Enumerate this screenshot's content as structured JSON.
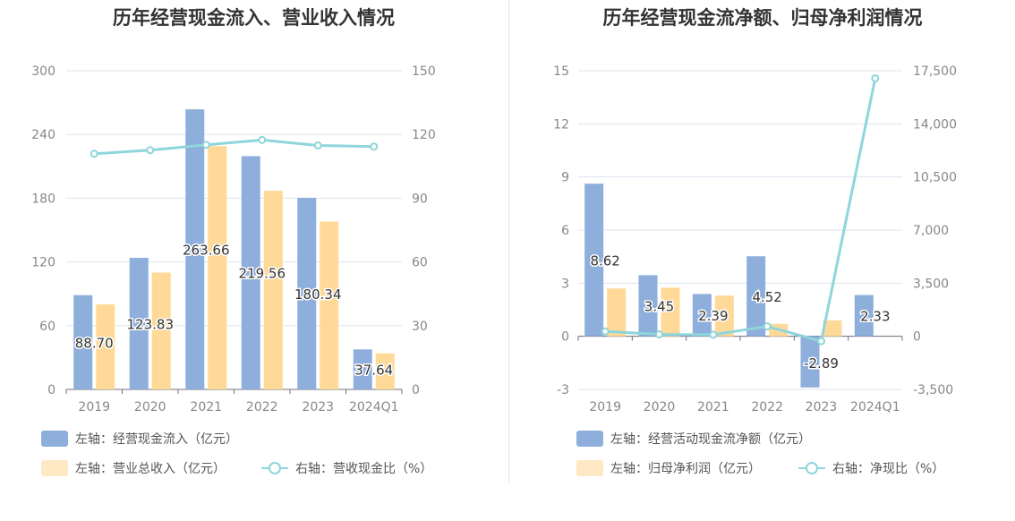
{
  "chart_data": [
    {
      "type": "bar",
      "title": "历年经营现金流入、营业收入情况",
      "categories": [
        "2019",
        "2020",
        "2021",
        "2022",
        "2023",
        "2024Q1"
      ],
      "left_axis": {
        "ticks": [
          "0",
          "60",
          "120",
          "180",
          "240",
          "300"
        ],
        "ylim": [
          0,
          300
        ]
      },
      "right_axis": {
        "ticks": [
          "0",
          "30",
          "60",
          "90",
          "120",
          "150"
        ],
        "ylim": [
          0,
          150
        ]
      },
      "series": [
        {
          "name": "左轴：经营现金流入（亿元）",
          "axis": "left",
          "kind": "bar",
          "color": "#8eaedb",
          "values": [
            88.7,
            123.83,
            263.66,
            219.56,
            180.34,
            37.64
          ],
          "labels": [
            "88.70",
            "123.83",
            "263.66",
            "219.56",
            "180.34",
            "37.64"
          ]
        },
        {
          "name": "左轴：营业总收入（亿元）",
          "axis": "left",
          "kind": "bar",
          "color": "#ffd998",
          "values": [
            80,
            110,
            229,
            187,
            158,
            34
          ]
        },
        {
          "name": "右轴：营收现金比（%）",
          "axis": "right",
          "kind": "line",
          "color": "#8ed6db",
          "values": [
            110.9,
            112.6,
            115.1,
            117.4,
            114.8,
            114.3
          ]
        }
      ]
    },
    {
      "type": "bar",
      "title": "历年经营现金流净额、归母净利润情况",
      "categories": [
        "2019",
        "2020",
        "2021",
        "2022",
        "2023",
        "2024Q1"
      ],
      "left_axis": {
        "ticks": [
          "-3",
          "0",
          "3",
          "6",
          "9",
          "12",
          "15"
        ],
        "ylim": [
          -3,
          15
        ]
      },
      "right_axis": {
        "ticks": [
          "-3,500",
          "0",
          "3,500",
          "7,000",
          "10,500",
          "14,000",
          "17,500"
        ],
        "ylim": [
          -3500,
          17500
        ]
      },
      "series": [
        {
          "name": "左轴：经营活动现金流净额（亿元）",
          "axis": "left",
          "kind": "bar",
          "color": "#8eaedb",
          "values": [
            8.62,
            3.45,
            2.39,
            4.52,
            -2.89,
            2.33
          ],
          "labels": [
            "8.62",
            "3.45",
            "2.39",
            "4.52",
            "-2.89",
            "2.33"
          ]
        },
        {
          "name": "左轴：归母净利润（亿元）",
          "axis": "left",
          "kind": "bar",
          "color": "#ffd998",
          "values": [
            2.7,
            2.75,
            2.3,
            0.7,
            0.9,
            0
          ]
        },
        {
          "name": "右轴：净现比（%）",
          "axis": "right",
          "kind": "line",
          "color": "#8ed6db",
          "values": [
            320,
            125,
            104,
            650,
            -320,
            17000
          ]
        }
      ]
    }
  ]
}
